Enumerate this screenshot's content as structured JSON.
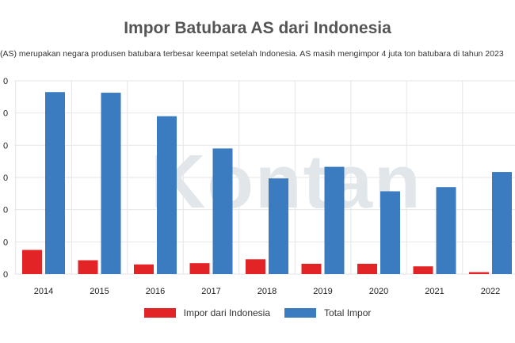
{
  "chart_data": {
    "type": "bar",
    "title": "Impor Batubara AS dari Indonesia",
    "subtitle": "(AS) merupakan negara produsen batubara terbesar keempat setelah Indonesia. AS masih mengimpor 4 juta ton batubara di tahun 2023",
    "categories": [
      "2014",
      "2015",
      "2016",
      "2017",
      "2018",
      "2019",
      "2020",
      "2021",
      "2022"
    ],
    "series": [
      {
        "name": "Impor dari Indonesia",
        "color": "#e32427",
        "values": [
          0.75,
          0.43,
          0.3,
          0.34,
          0.46,
          0.32,
          0.32,
          0.24,
          0.06
        ]
      },
      {
        "name": "Total Impor",
        "color": "#3b7bbf",
        "values": [
          5.65,
          5.63,
          4.9,
          3.9,
          2.97,
          3.33,
          2.57,
          2.7,
          3.17
        ]
      }
    ],
    "ylim": [
      0,
      6
    ],
    "yticks_visible": [
      "0",
      "0",
      "0",
      "0",
      "0",
      "0",
      "0"
    ],
    "grid": true,
    "legend": "bottom",
    "watermark": "Kontan"
  }
}
